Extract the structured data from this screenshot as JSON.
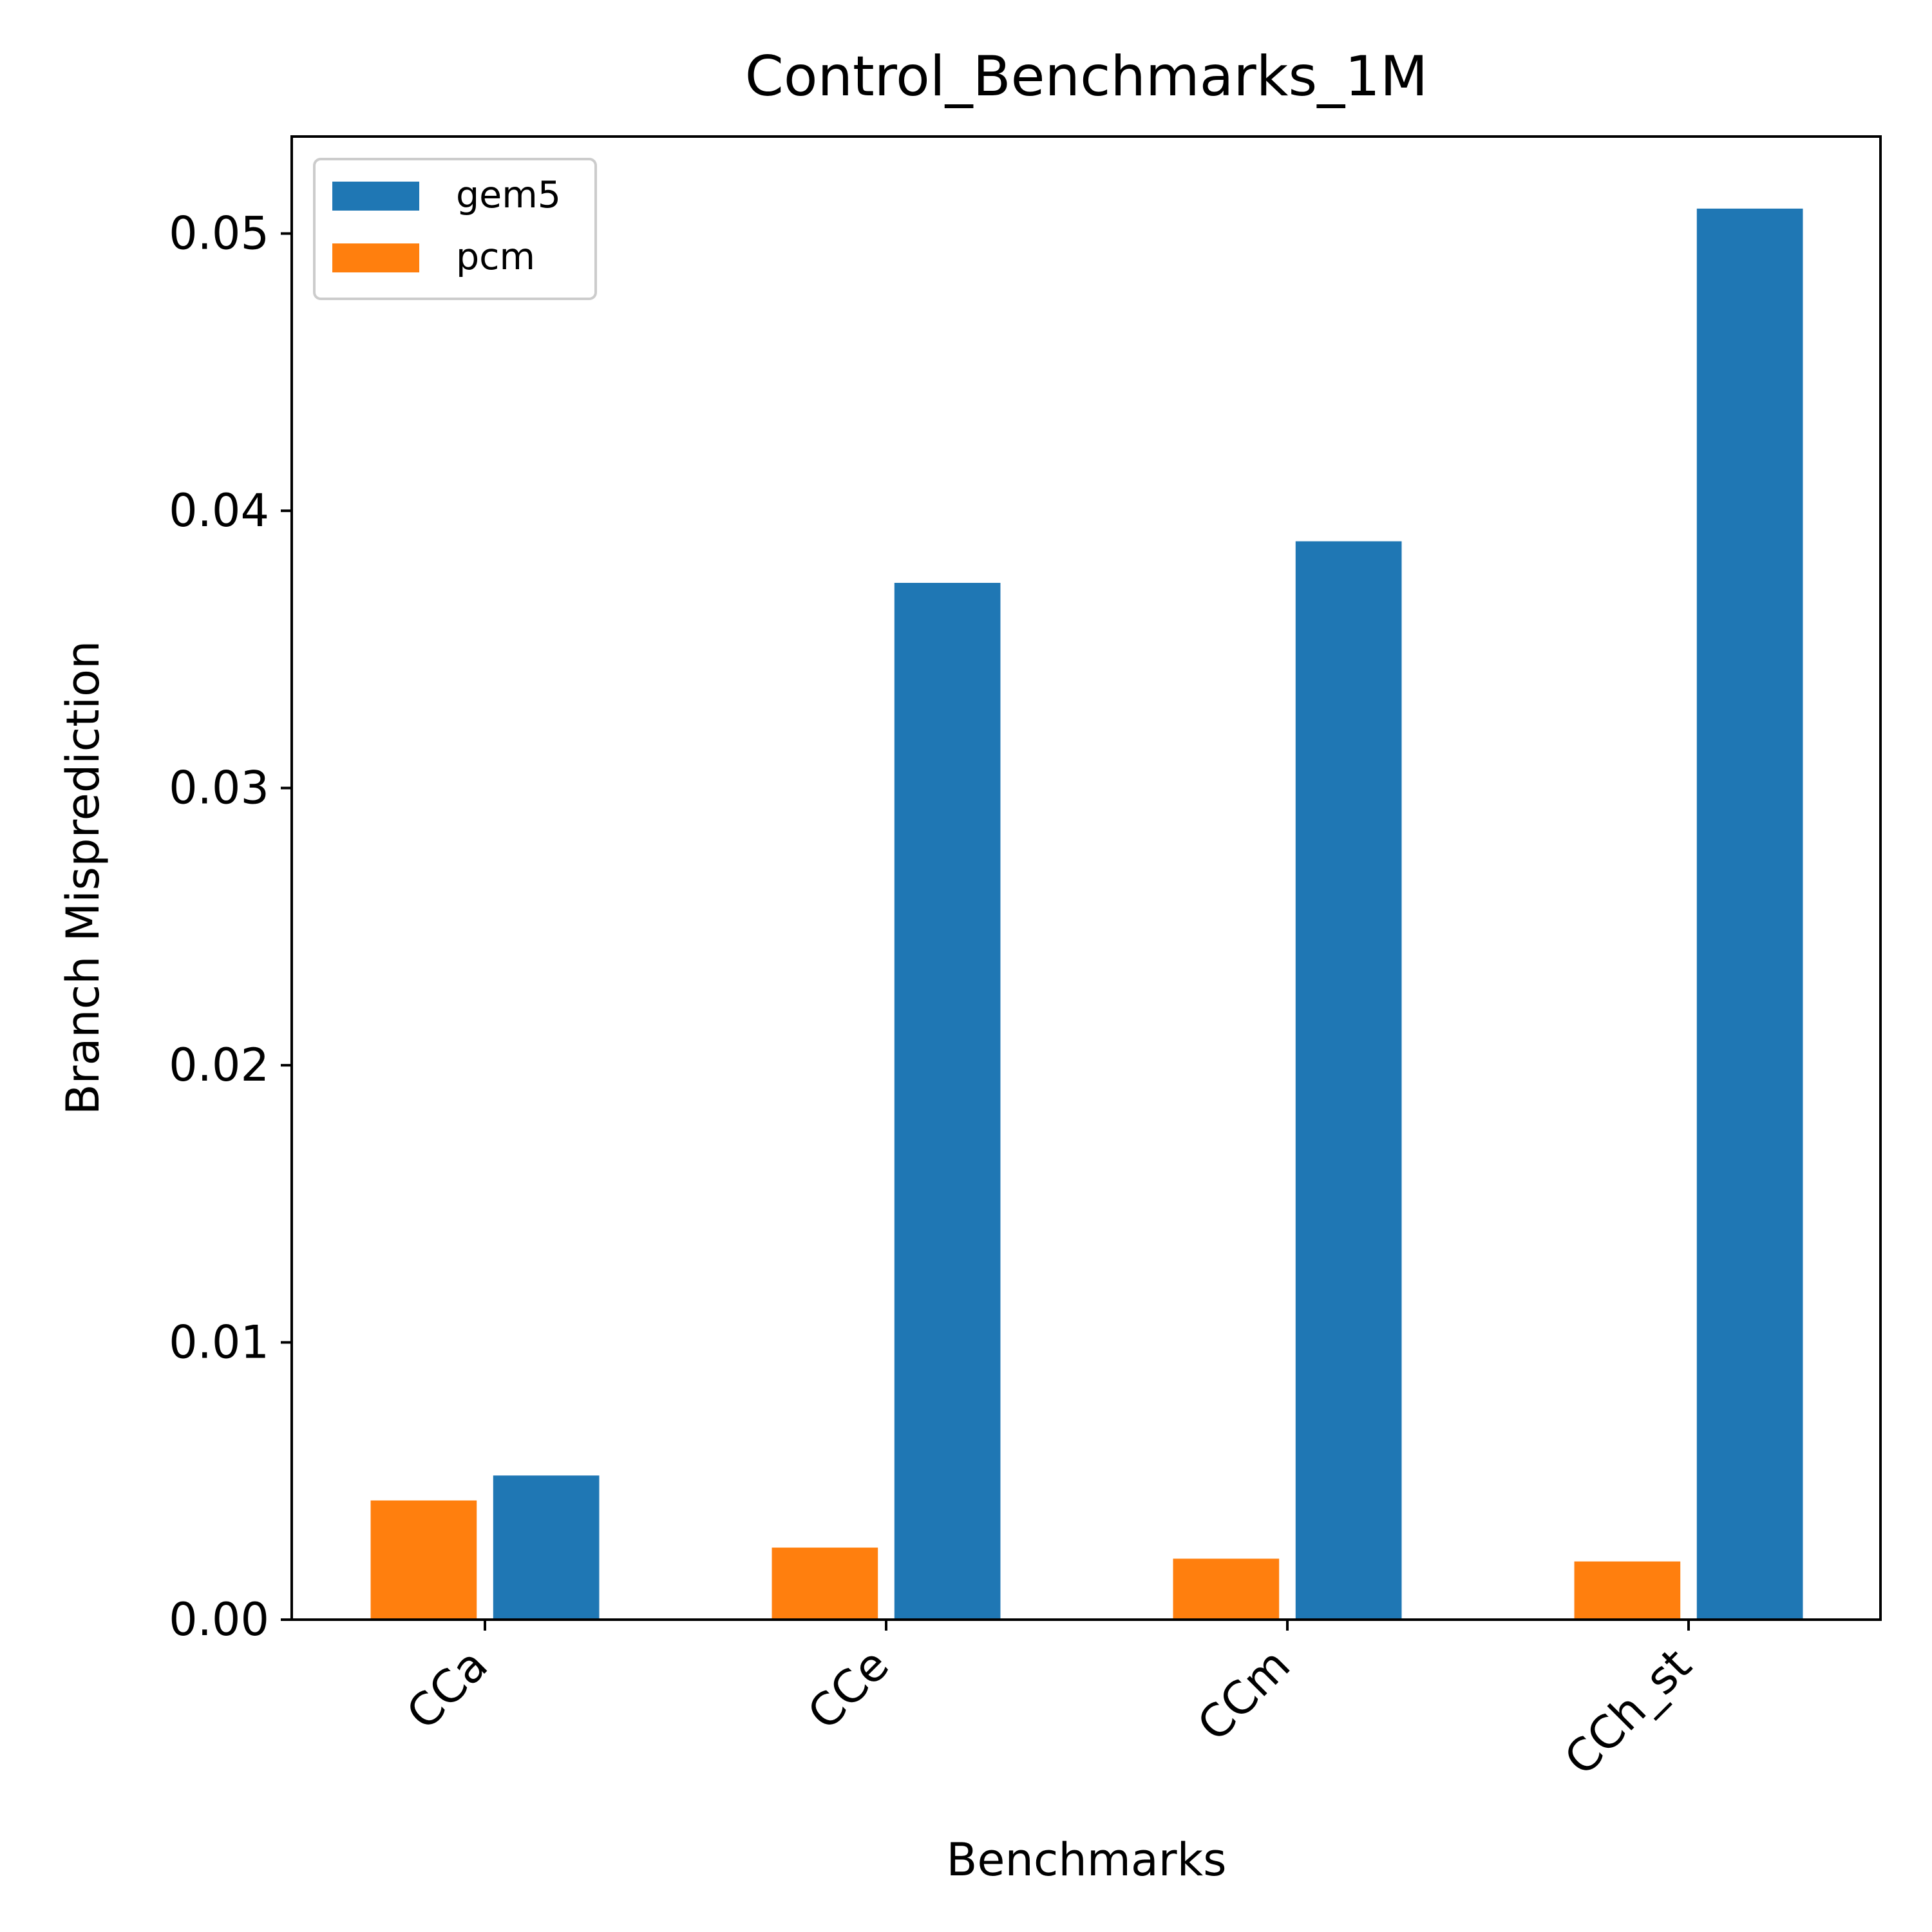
{
  "chart_data": {
    "type": "bar",
    "title": "Control_Benchmarks_1M",
    "xlabel": "Benchmarks",
    "ylabel": "Branch Misprediction",
    "categories": [
      "CCa",
      "CCe",
      "CCm",
      "CCh_st"
    ],
    "series": [
      {
        "name": "gem5",
        "color": "#1f77b4",
        "values": [
          0.0052,
          0.0374,
          0.0389,
          0.0509
        ]
      },
      {
        "name": "pcm",
        "color": "#ff7f0e",
        "values": [
          0.0043,
          0.0026,
          0.0022,
          0.0021
        ]
      }
    ],
    "ylim": [
      0,
      0.0535
    ],
    "yticks": [
      "0.00",
      "0.01",
      "0.02",
      "0.03",
      "0.04",
      "0.05"
    ],
    "grid": false,
    "legend_position": "top-left"
  }
}
